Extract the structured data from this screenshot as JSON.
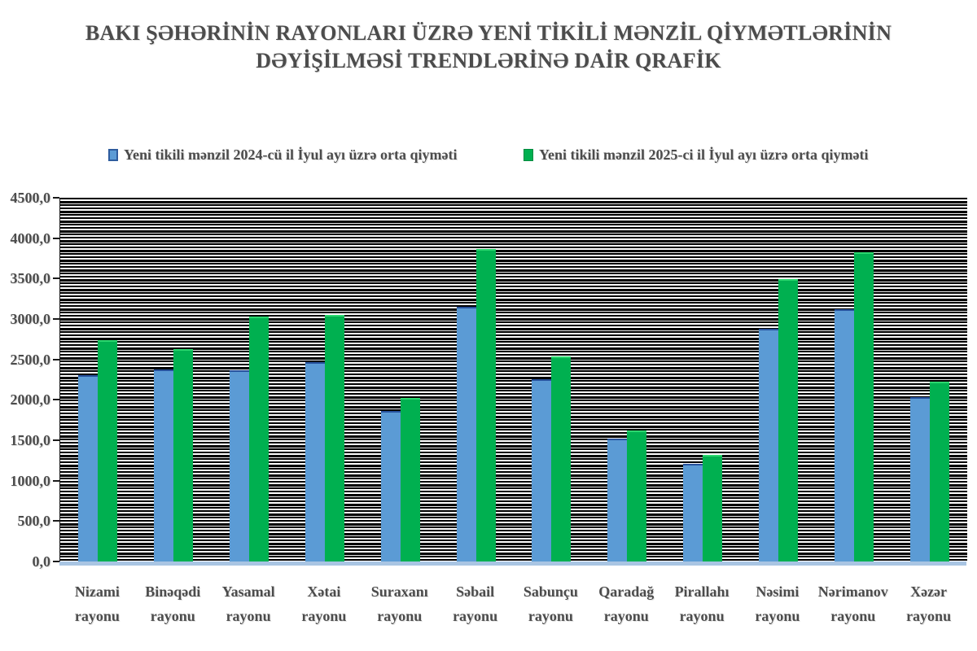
{
  "title": {
    "line1": "BAKI ŞƏHƏRİNİN RAYONLARI ÜZRƏ YENİ TİKİLİ MƏNZİL QİYMƏTLƏRİNİN",
    "line2": "DƏYİŞİLMƏSİ TRENDLƏRİNƏ DAİR QRAFİK"
  },
  "legend": {
    "items": [
      {
        "label": "Yeni tikili mənzil 2024-cü il  İyul ayı üzrə orta qiyməti",
        "color": "#5b9bd5"
      },
      {
        "label": "Yeni tikili mənzil 2025-ci il  İyul ayı üzrə orta qiyməti",
        "color": "#00b050"
      }
    ]
  },
  "chart_data": {
    "type": "bar",
    "title": "BAKI ŞƏHƏRİNİN RAYONLARI ÜZRƏ YENİ TİKİLİ MƏNZİL QİYMƏTLƏRİNİN DƏYİŞİLMƏSİ TRENDLƏRİNƏ DAİR QRAFİK",
    "categories": [
      "Nizami rayonu",
      "Binəqədi rayonu",
      "Yasamal rayonu",
      "Xətai rayonu",
      "Suraxanı rayonu",
      "Səbail rayonu",
      "Sabunçu rayonu",
      "Qaradağ rayonu",
      "Pirallahı rayonu",
      "Nəsimi rayonu",
      "Nərimanov rayonu",
      "Xəzər rayonu"
    ],
    "series": [
      {
        "name": "Yeni tikili mənzil 2024-cü il  İyul ayı üzrə orta qiyməti",
        "color": "#5b9bd5",
        "values": [
          2310,
          2380,
          2370,
          2465,
          1865,
          3155,
          2255,
          1525,
          1205,
          2880,
          3120,
          2035
        ]
      },
      {
        "name": "Yeni tikili mənzil 2025-ci il  İyul ayı üzrə orta qiyməti",
        "color": "#00b050",
        "values": [
          2740,
          2630,
          3030,
          3050,
          2025,
          3870,
          2535,
          1625,
          1315,
          3490,
          3825,
          2220
        ]
      }
    ],
    "xlabel": "",
    "ylabel": "",
    "ylim": [
      0,
      4500
    ],
    "ytick_step": 500,
    "ytick_labels": [
      "0,0",
      "500,0",
      "1000,0",
      "1500,0",
      "2000,0",
      "2500,0",
      "3000,0",
      "3500,0",
      "4000,0",
      "4500,0"
    ],
    "grid": "dense horizontal stripes (minor gridlines)",
    "legend_position": "top"
  }
}
